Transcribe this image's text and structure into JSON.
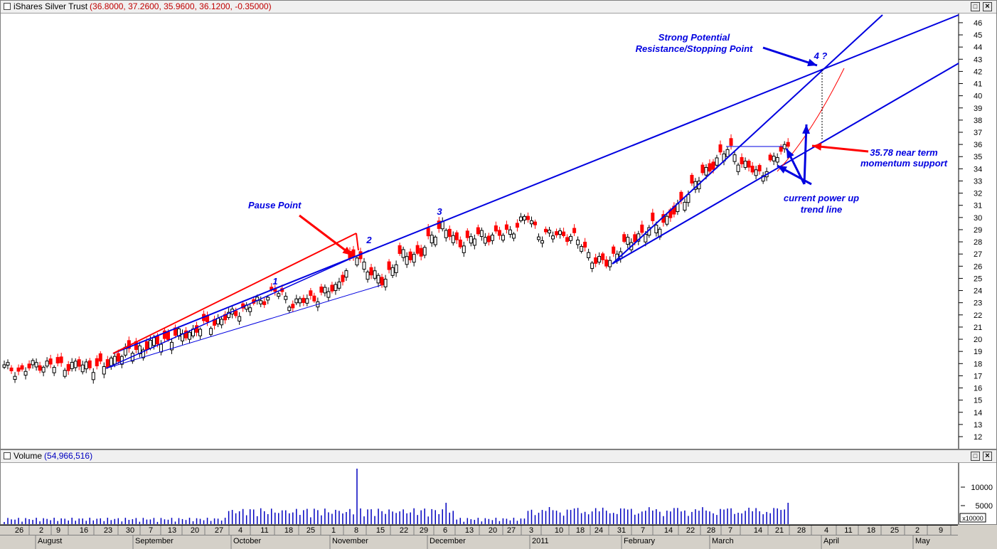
{
  "price_panel": {
    "symbol_name": "iShares Silver Trust",
    "ohlc_readout": "(36.8000, 37.2600, 35.9600, 36.1200, -0.35000)",
    "max_button": "□",
    "close_button": "×"
  },
  "volume_panel": {
    "label": "Volume",
    "readout": "(54,966,516)",
    "max_button": "□",
    "close_button": "×",
    "axis_ticks": [
      "10000",
      "5000"
    ],
    "axis_unit": "x10000"
  },
  "annotations": {
    "pause_point": "Pause Point",
    "strong_potential": "Strong Potential",
    "resistance_stopping": "Resistance/Stopping Point",
    "near_term_line1": "35.78 near term",
    "near_term_line2": "momentum support",
    "power_up_line1": "current power up",
    "power_up_line2": "trend line",
    "wave1": "1",
    "wave2": "2",
    "wave3": "3",
    "wave4": "4 ?"
  },
  "x_axis": {
    "day_ticks": [
      "26",
      "2",
      "9",
      "16",
      "23",
      "30",
      "7",
      "13",
      "20",
      "27",
      "4",
      "11",
      "18",
      "25",
      "1",
      "8",
      "15",
      "22",
      "29",
      "6",
      "13",
      "20",
      "27",
      "3",
      "10",
      "18",
      "24",
      "31",
      "7",
      "14",
      "22",
      "28",
      "7",
      "14",
      "21",
      "28",
      "4",
      "11",
      "18",
      "25",
      "2",
      "9"
    ],
    "months": [
      "August",
      "September",
      "October",
      "November",
      "December",
      "2011",
      "February",
      "March",
      "April",
      "May"
    ]
  },
  "colors": {
    "up_candle": "#000000",
    "down_candle": "#ff0000",
    "trendline": "#0000e0",
    "red_line": "#ff0000",
    "volume_bar": "#0000c0"
  },
  "chart_data": {
    "type": "candlestick",
    "title": "iShares Silver Trust",
    "y_axis": {
      "min": 11.5,
      "max": 46.5,
      "ticks": [
        12,
        13,
        14,
        15,
        16,
        17,
        18,
        19,
        20,
        21,
        22,
        23,
        24,
        25,
        26,
        27,
        28,
        29,
        30,
        31,
        32,
        33,
        34,
        35,
        36,
        37,
        38,
        39,
        40,
        41,
        42,
        43,
        44,
        45,
        46
      ]
    },
    "last_bar": {
      "open": 36.8,
      "high": 37.26,
      "low": 35.96,
      "close": 36.12,
      "change": -0.35
    },
    "date_range": [
      "2010-07-26",
      "2011-05-09"
    ],
    "key_levels": {
      "momentum_support": 35.78,
      "projected_resistance": 42.3
    },
    "series": [
      {
        "name": "Volume",
        "last_value": 54966516
      }
    ]
  }
}
